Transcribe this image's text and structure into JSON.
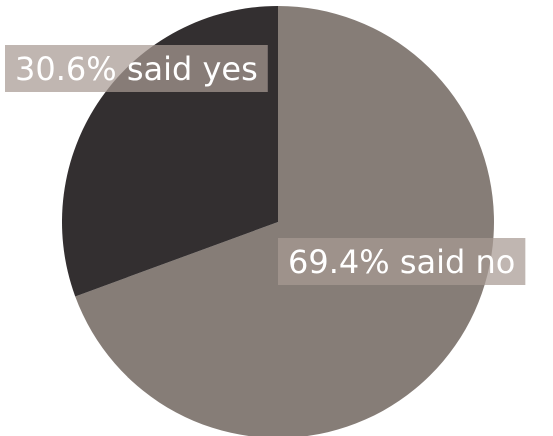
{
  "chart_data": {
    "type": "pie",
    "title": "",
    "slices": [
      {
        "label": "said no",
        "value": 69.4,
        "display": "69.4% said no",
        "color": "#867d77"
      },
      {
        "label": "said yes",
        "value": 30.6,
        "display": "30.6% said yes",
        "color": "#332f30"
      }
    ],
    "label_box_color": "#a89a93",
    "label_text_color": "#ffffff"
  }
}
